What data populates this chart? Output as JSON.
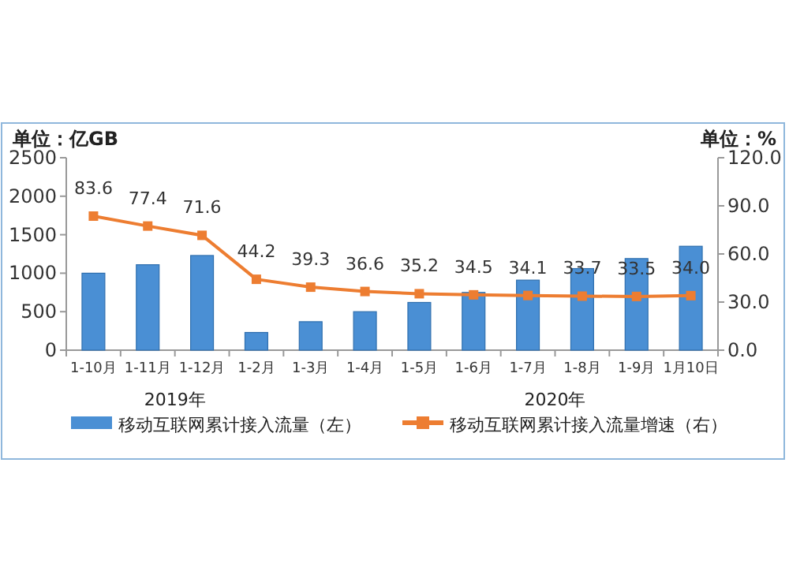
{
  "chart_data": {
    "type": "bar",
    "ylabel": "单位：亿GB",
    "y2label": "单位：%",
    "categories": [
      "1-10月",
      "1-11月",
      "1-12月",
      "1-2月",
      "1-3月",
      "1-4月",
      "1-5月",
      "1-6月",
      "1-7月",
      "1-8月",
      "1-9月",
      "1月10日"
    ],
    "series": [
      {
        "name": "移动互联网累计接入流量（左）",
        "color": "#4a8fd4",
        "values": [
          1000,
          1110,
          1230,
          230,
          370,
          500,
          620,
          750,
          910,
          1060,
          1190,
          1350
        ]
      },
      {
        "name": "移动互联网累计接入流量增速（右）",
        "type": "line",
        "axis": "y2",
        "color": "#ed7d31",
        "marker": "square",
        "values": [
          83.6,
          77.4,
          71.6,
          44.2,
          39.3,
          36.6,
          35.2,
          34.5,
          34.1,
          33.7,
          33.5,
          34.0
        ],
        "value_labels": [
          "83.6",
          "77.4",
          "71.6",
          "44.2",
          "39.3",
          "36.6",
          "35.2",
          "34.5",
          "34.1",
          "33.7",
          "33.5",
          "34.0"
        ]
      }
    ],
    "ylim": [
      0,
      2500
    ],
    "yticks": [
      0,
      500,
      1000,
      1500,
      2000,
      2500
    ],
    "y2lim": [
      0,
      120
    ],
    "y2ticks": [
      {
        "value": 0,
        "label": "0.0"
      },
      {
        "value": 30,
        "label": "30.0"
      },
      {
        "value": 60,
        "label": "60.0"
      },
      {
        "value": 90,
        "label": "90.0"
      },
      {
        "value": 120,
        "label": "120.0"
      }
    ],
    "annotations": [
      "2019年",
      "2020年"
    ],
    "legend": "bottom",
    "grid": false
  }
}
